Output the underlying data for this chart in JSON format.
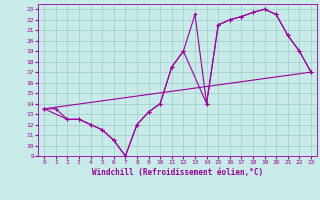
{
  "xlabel": "Windchill (Refroidissement éolien,°C)",
  "background_color": "#c8eae8",
  "grid_color": "#a0ccc8",
  "line_color": "#990099",
  "xlim": [
    -0.5,
    23.5
  ],
  "ylim": [
    9,
    23.5
  ],
  "xticks": [
    0,
    1,
    2,
    3,
    4,
    5,
    6,
    7,
    8,
    9,
    10,
    11,
    12,
    13,
    14,
    15,
    16,
    17,
    18,
    19,
    20,
    21,
    22,
    23
  ],
  "yticks": [
    9,
    10,
    11,
    12,
    13,
    14,
    15,
    16,
    17,
    18,
    19,
    20,
    21,
    22,
    23
  ],
  "line1_x": [
    0,
    1,
    2,
    3,
    4,
    5,
    6,
    7,
    8,
    9,
    10,
    11,
    12,
    14,
    15,
    16,
    17,
    18,
    19,
    20,
    21,
    22,
    23
  ],
  "line1_y": [
    13.5,
    13.5,
    12.5,
    12.5,
    12.0,
    11.5,
    10.5,
    9.0,
    12.0,
    13.2,
    14.0,
    17.5,
    19.0,
    14.0,
    21.5,
    22.0,
    22.3,
    22.7,
    23.0,
    22.5,
    20.5,
    19.0,
    17.0
  ],
  "line2_x": [
    0,
    2,
    3,
    4,
    5,
    6,
    7,
    8,
    9,
    10,
    11,
    12,
    13,
    14,
    15,
    16,
    17,
    18,
    19,
    20,
    21,
    22,
    23
  ],
  "line2_y": [
    13.5,
    12.5,
    12.5,
    12.0,
    11.5,
    10.5,
    9.0,
    12.0,
    13.2,
    14.0,
    17.5,
    19.0,
    22.5,
    14.0,
    21.5,
    22.0,
    22.3,
    22.7,
    23.0,
    22.5,
    20.5,
    19.0,
    17.0
  ],
  "line3_x": [
    0,
    23
  ],
  "line3_y": [
    13.5,
    17.0
  ]
}
